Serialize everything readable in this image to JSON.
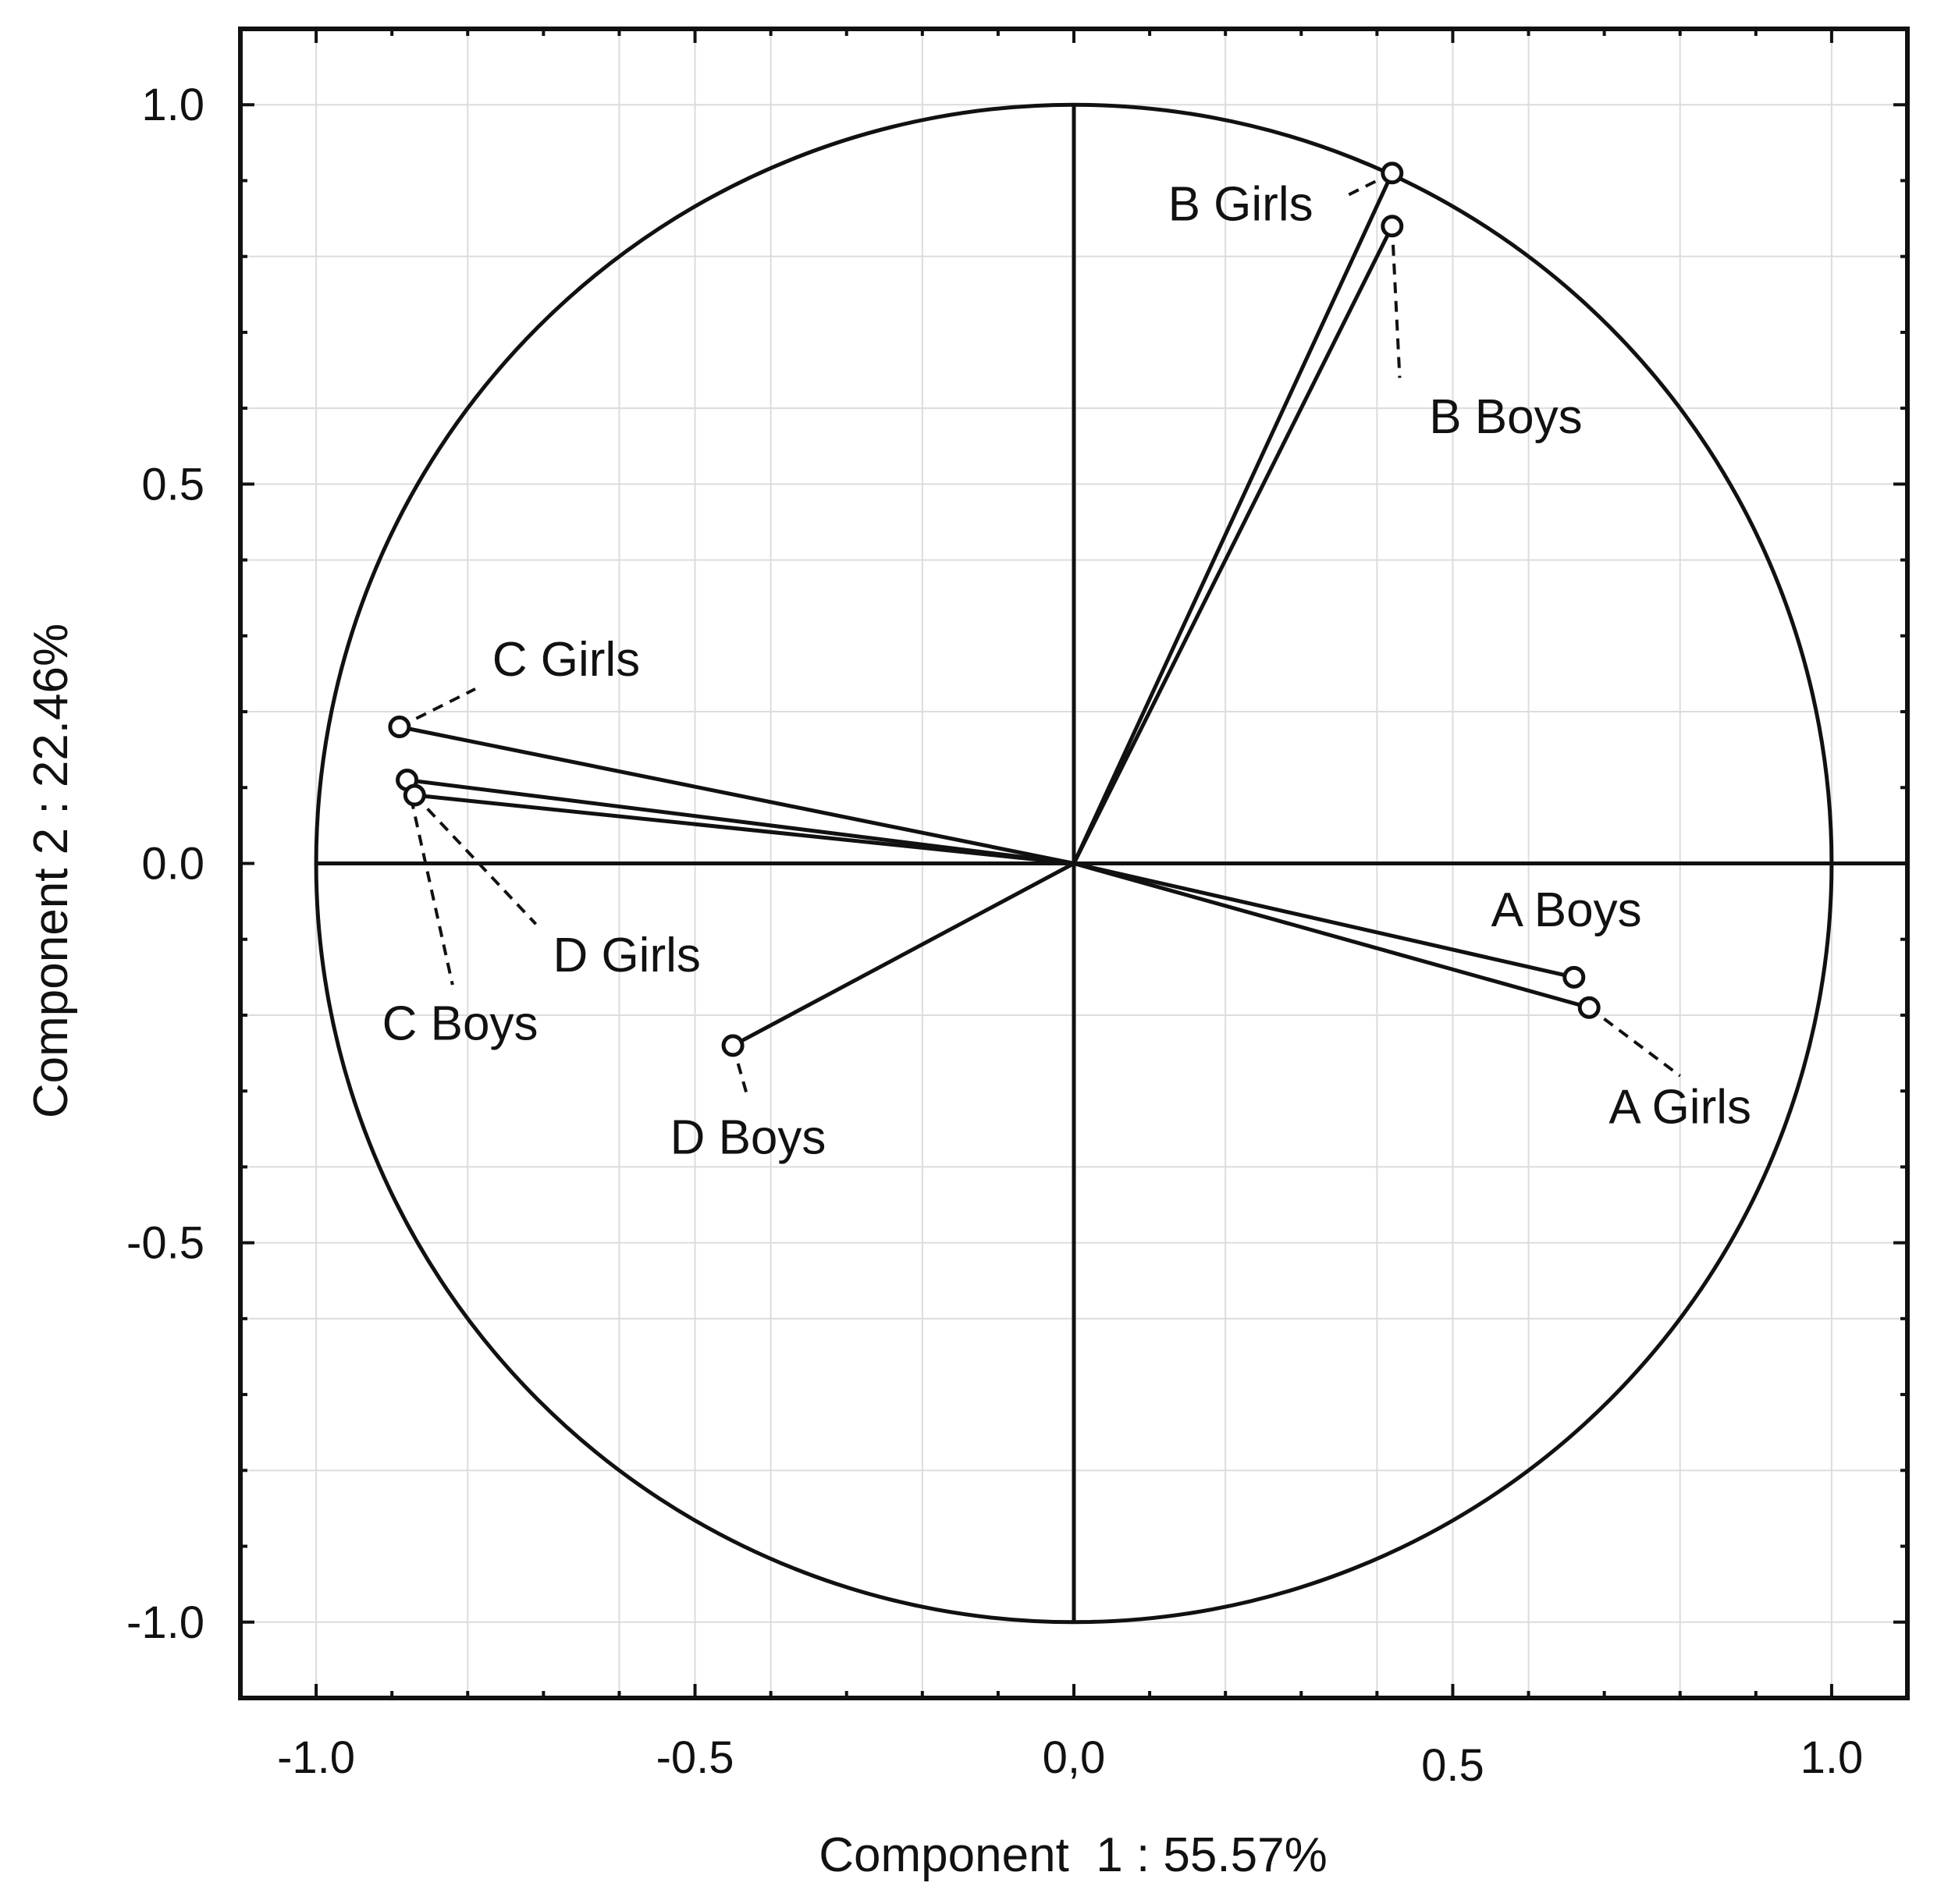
{
  "chart_data": {
    "type": "scatter",
    "subtype": "pca-correlation-circle",
    "title": "",
    "xlabel": "Component  1 : 55.57%",
    "ylabel": "Component 2 : 22.46%",
    "xlim": [
      -1.1,
      1.1
    ],
    "ylim": [
      -1.1,
      1.1
    ],
    "grid": true,
    "unit_circle": true,
    "x_ticks": [
      {
        "value": -1.0,
        "label": "-1.0"
      },
      {
        "value": -0.5,
        "label": "-0.5"
      },
      {
        "value": 0.0,
        "label": "0,0"
      },
      {
        "value": 0.5,
        "label": "0.5"
      },
      {
        "value": 1.0,
        "label": "1.0"
      }
    ],
    "y_ticks": [
      {
        "value": 1.0,
        "label": "1.0"
      },
      {
        "value": 0.5,
        "label": "0.5"
      },
      {
        "value": 0.0,
        "label": "0.0"
      },
      {
        "value": -0.5,
        "label": "-0.5"
      },
      {
        "value": -1.0,
        "label": "-1.0"
      }
    ],
    "points": [
      {
        "label": "B Girls",
        "x": 0.42,
        "y": 0.91,
        "label_at": [
          0.22,
          0.87
        ],
        "leader_to": [
          0.36,
          0.88
        ]
      },
      {
        "label": "B Boys",
        "x": 0.42,
        "y": 0.84,
        "label_at": [
          0.57,
          0.59
        ],
        "leader_to": [
          0.43,
          0.64
        ]
      },
      {
        "label": "C Girls",
        "x": -0.89,
        "y": 0.18,
        "label_at": [
          -0.67,
          0.27
        ],
        "leader_to": [
          -0.79,
          0.23
        ]
      },
      {
        "label": "C Boys",
        "x": -0.88,
        "y": 0.11,
        "label_at": [
          -0.81,
          -0.21
        ],
        "leader_to": [
          -0.82,
          -0.16
        ]
      },
      {
        "label": "D Girls",
        "x": -0.87,
        "y": 0.09,
        "label_at": [
          -0.59,
          -0.12
        ],
        "leader_to": [
          -0.71,
          -0.08
        ]
      },
      {
        "label": "D Boys",
        "x": -0.45,
        "y": -0.24,
        "label_at": [
          -0.43,
          -0.36
        ],
        "leader_to": [
          -0.43,
          -0.31
        ]
      },
      {
        "label": "A Boys",
        "x": 0.66,
        "y": -0.15,
        "label_at": [
          0.65,
          -0.06
        ],
        "leader_to": null
      },
      {
        "label": "A Girls",
        "x": 0.68,
        "y": -0.19,
        "label_at": [
          0.8,
          -0.32
        ],
        "leader_to": [
          0.8,
          -0.28
        ]
      }
    ]
  }
}
